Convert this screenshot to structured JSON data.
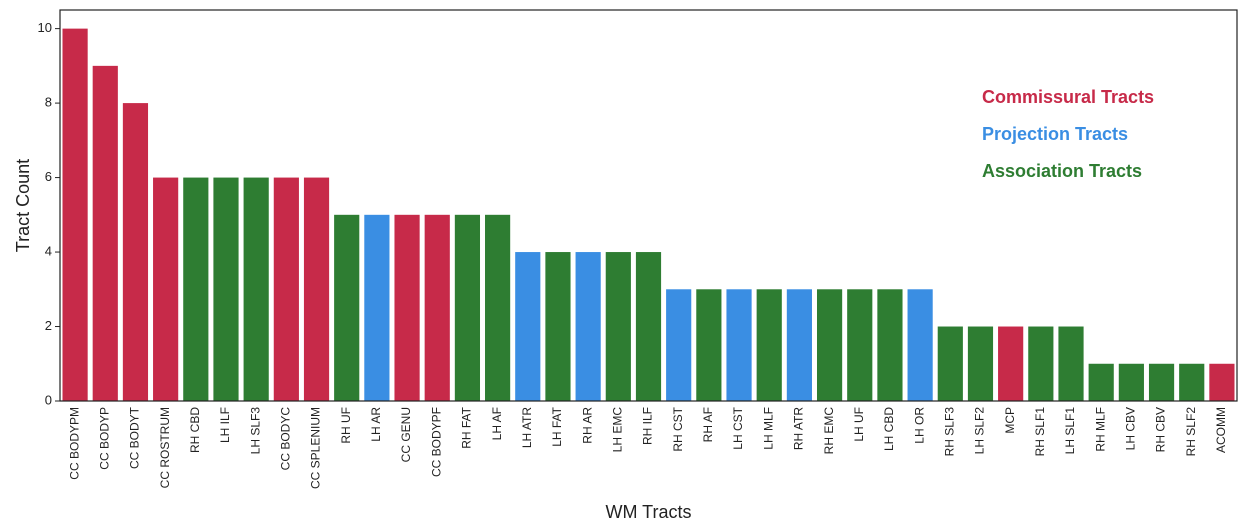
{
  "chart_data": {
    "type": "bar",
    "xlabel": "WM Tracts",
    "ylabel": "Tract Count",
    "ylim": [
      0,
      10.5
    ],
    "yticks": [
      0,
      2,
      4,
      6,
      8,
      10
    ],
    "grid": false,
    "legend_placement": "top-right",
    "colors": {
      "commissural": "#c72a49",
      "projection": "#3a8ee3",
      "association": "#2e7d32"
    },
    "legend": [
      {
        "group": "commissural",
        "label": "Commissural Tracts"
      },
      {
        "group": "projection",
        "label": "Projection Tracts"
      },
      {
        "group": "association",
        "label": "Association Tracts"
      }
    ],
    "bars": [
      {
        "category": "CC BODYPM",
        "value": 10,
        "group": "commissural"
      },
      {
        "category": "CC BODYP",
        "value": 9,
        "group": "commissural"
      },
      {
        "category": "CC BODYT",
        "value": 8,
        "group": "commissural"
      },
      {
        "category": "CC ROSTRUM",
        "value": 6,
        "group": "commissural"
      },
      {
        "category": "RH CBD",
        "value": 6,
        "group": "association"
      },
      {
        "category": "LH ILF",
        "value": 6,
        "group": "association"
      },
      {
        "category": "LH SLF3",
        "value": 6,
        "group": "association"
      },
      {
        "category": "CC BODYC",
        "value": 6,
        "group": "commissural"
      },
      {
        "category": "CC SPLENIUM",
        "value": 6,
        "group": "commissural"
      },
      {
        "category": "RH UF",
        "value": 5,
        "group": "association"
      },
      {
        "category": "LH AR",
        "value": 5,
        "group": "projection"
      },
      {
        "category": "CC GENU",
        "value": 5,
        "group": "commissural"
      },
      {
        "category": "CC BODYPF",
        "value": 5,
        "group": "commissural"
      },
      {
        "category": "RH FAT",
        "value": 5,
        "group": "association"
      },
      {
        "category": "LH AF",
        "value": 5,
        "group": "association"
      },
      {
        "category": "LH ATR",
        "value": 4,
        "group": "projection"
      },
      {
        "category": "LH FAT",
        "value": 4,
        "group": "association"
      },
      {
        "category": "RH AR",
        "value": 4,
        "group": "projection"
      },
      {
        "category": "LH EMC",
        "value": 4,
        "group": "association"
      },
      {
        "category": "RH ILF",
        "value": 4,
        "group": "association"
      },
      {
        "category": "RH CST",
        "value": 3,
        "group": "projection"
      },
      {
        "category": "RH AF",
        "value": 3,
        "group": "association"
      },
      {
        "category": "LH CST",
        "value": 3,
        "group": "projection"
      },
      {
        "category": "LH MLF",
        "value": 3,
        "group": "association"
      },
      {
        "category": "RH ATR",
        "value": 3,
        "group": "projection"
      },
      {
        "category": "RH EMC",
        "value": 3,
        "group": "association"
      },
      {
        "category": "LH UF",
        "value": 3,
        "group": "association"
      },
      {
        "category": "LH CBD",
        "value": 3,
        "group": "association"
      },
      {
        "category": "LH OR",
        "value": 3,
        "group": "projection"
      },
      {
        "category": "RH SLF3",
        "value": 2,
        "group": "association"
      },
      {
        "category": "LH SLF2",
        "value": 2,
        "group": "association"
      },
      {
        "category": "MCP",
        "value": 2,
        "group": "commissural"
      },
      {
        "category": "RH SLF1",
        "value": 2,
        "group": "association"
      },
      {
        "category": "LH SLF1",
        "value": 2,
        "group": "association"
      },
      {
        "category": "RH MLF",
        "value": 1,
        "group": "association"
      },
      {
        "category": "LH CBV",
        "value": 1,
        "group": "association"
      },
      {
        "category": "RH CBV",
        "value": 1,
        "group": "association"
      },
      {
        "category": "RH SLF2",
        "value": 1,
        "group": "association"
      },
      {
        "category": "ACOMM",
        "value": 1,
        "group": "commissural"
      }
    ]
  }
}
